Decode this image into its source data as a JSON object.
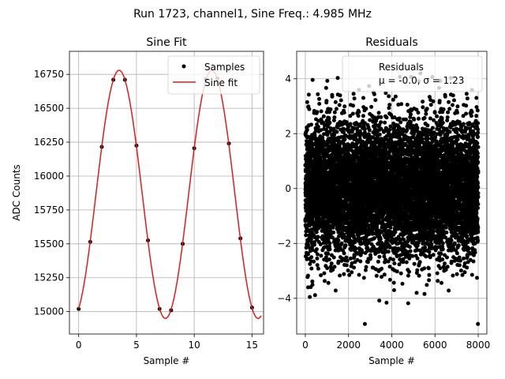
{
  "suptitle": "Run 1723, channel1, Sine Freq.: 4.985 MHz",
  "chart_data": [
    {
      "type": "scatter",
      "title": "Sine Fit",
      "xlabel": "Sample #",
      "ylabel": "ADC Counts",
      "xlim": [
        -0.8,
        16.0
      ],
      "ylim": [
        14835,
        16920
      ],
      "xticks": [
        0,
        5,
        10,
        15
      ],
      "yticks": [
        15000,
        15250,
        15500,
        15750,
        16000,
        16250,
        16500,
        16750
      ],
      "grid": true,
      "legend": {
        "placement": "upper right",
        "entries": [
          "Samples",
          "Sine fit"
        ]
      },
      "series": [
        {
          "name": "Samples",
          "kind": "points",
          "color": "#000000",
          "x": [
            0,
            1,
            2,
            3,
            4,
            5,
            6,
            7,
            8,
            9,
            10,
            11,
            12,
            13,
            14,
            15
          ],
          "y": [
            15020,
            15515,
            16215,
            16710,
            16710,
            16225,
            15525,
            15020,
            15010,
            15500,
            16205,
            16715,
            16720,
            16240,
            15540,
            15030
          ]
        },
        {
          "name": "Sine fit",
          "kind": "curve",
          "color": "#e31a1c",
          "x_range": [
            0,
            15.8
          ],
          "amplitude": 915,
          "offset": 15865,
          "period": 8.02,
          "peak_x": 3.5
        }
      ]
    },
    {
      "type": "scatter",
      "title": "Residuals",
      "xlabel": "Sample #",
      "ylabel": "",
      "xlim": [
        -400,
        8400
      ],
      "ylim": [
        -5.3,
        5.0
      ],
      "xticks": [
        0,
        2000,
        4000,
        6000,
        8000
      ],
      "yticks": [
        -4,
        -2,
        0,
        2,
        4
      ],
      "grid": true,
      "legend": {
        "placement": "upper right",
        "entries": [
          "Residuals",
          "μ = -0.0, σ = 1.23"
        ]
      },
      "series": [
        {
          "name": "Residuals",
          "color": "#000000",
          "count": 8000,
          "mean": -0.0,
          "sigma": 1.23,
          "x_range": [
            0,
            8000
          ]
        }
      ]
    }
  ],
  "colors": {
    "axes": "#000000",
    "grid": "#b0b0b0",
    "fit": "#e31a1c",
    "points": "#000000"
  }
}
